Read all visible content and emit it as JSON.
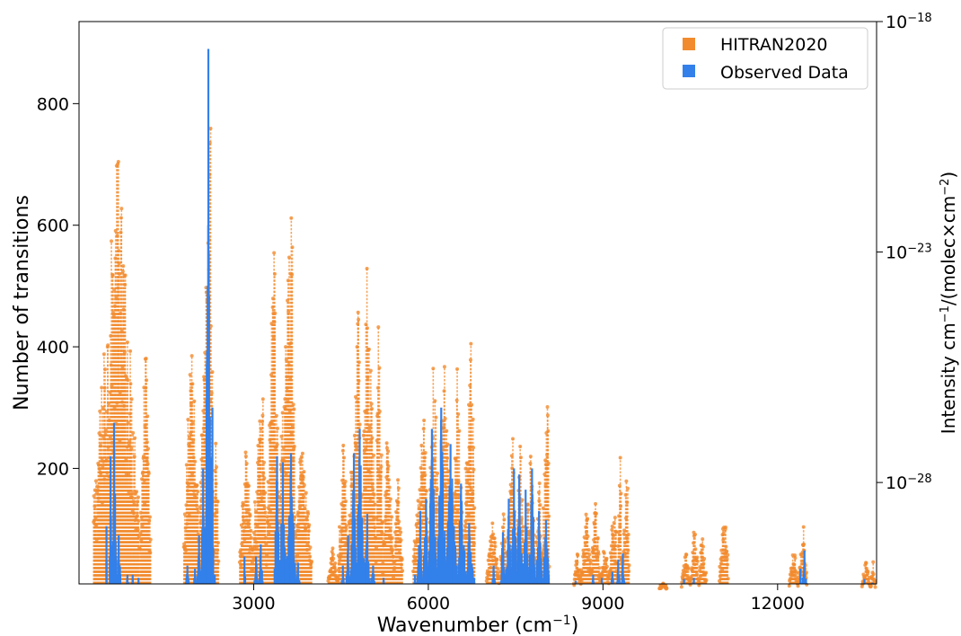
{
  "chart_data": {
    "type": "bar",
    "title": "",
    "xlabel": "Wavenumber (cm",
    "xlabel_sup": "−1",
    "xlabel_end": ")",
    "ylabel_left": "Number of transitions",
    "ylabel_right_parts": [
      "Intensity cm",
      "−1",
      "/(molec×cm",
      "−2",
      ")"
    ],
    "xlim": [
      0,
      13700
    ],
    "ylim_left": [
      10,
      935
    ],
    "ylim_right_log10": [
      -30.2,
      -18
    ],
    "x_ticks": [
      3000,
      6000,
      9000,
      12000
    ],
    "x_tick_labels": [
      "3000",
      "6000",
      "9000",
      "12000"
    ],
    "y_left_ticks": [
      200,
      400,
      600,
      800
    ],
    "y_left_tick_labels": [
      "200",
      "400",
      "600",
      "800"
    ],
    "y_right_ticks_log10": [
      -18,
      -23,
      -28
    ],
    "y_right_tick_base": "10",
    "y_right_tick_exponents": [
      "−18",
      "−23",
      "−28"
    ],
    "grid": false,
    "legend_position": "top-right",
    "legend": [
      {
        "label": "HITRAN2020",
        "color": "#f28b2e"
      },
      {
        "label": "Observed Data",
        "color": "#3380ea"
      }
    ],
    "series": [
      {
        "name": "HITRAN2020",
        "axis": "right",
        "color": "#f28b2e",
        "bands": [
          [
            250,
            1040,
            740,
            670
          ],
          [
            1050,
            1230,
            430,
            1140
          ],
          [
            1800,
            2080,
            440,
            1930
          ],
          [
            2080,
            2300,
            825,
            2270
          ],
          [
            2300,
            2400,
            335,
            2350
          ],
          [
            2760,
            2980,
            260,
            2870
          ],
          [
            2980,
            3230,
            365,
            3150
          ],
          [
            3230,
            3430,
            650,
            3360
          ],
          [
            3430,
            3720,
            695,
            3660
          ],
          [
            3720,
            4000,
            280,
            3800
          ],
          [
            4280,
            4450,
            75,
            4350
          ],
          [
            4450,
            4620,
            270,
            4550
          ],
          [
            4620,
            4850,
            470,
            4800
          ],
          [
            4850,
            5100,
            550,
            4950
          ],
          [
            5100,
            5220,
            520,
            5150
          ],
          [
            5220,
            5400,
            290,
            5300
          ],
          [
            5400,
            5560,
            205,
            5470
          ],
          [
            5740,
            6000,
            295,
            5930
          ],
          [
            6000,
            6200,
            420,
            6100
          ],
          [
            6200,
            6400,
            400,
            6280
          ],
          [
            6400,
            6600,
            380,
            6500
          ],
          [
            6600,
            6800,
            455,
            6740
          ],
          [
            7000,
            7220,
            115,
            7100
          ],
          [
            7220,
            7350,
            150,
            7300
          ],
          [
            7350,
            7500,
            275,
            7450
          ],
          [
            7500,
            7650,
            265,
            7580
          ],
          [
            7650,
            7850,
            235,
            7750
          ],
          [
            7850,
            7950,
            235,
            7900
          ],
          [
            7950,
            8080,
            350,
            8050
          ],
          [
            8500,
            8620,
            65,
            8560
          ],
          [
            8620,
            8800,
            140,
            8720
          ],
          [
            8800,
            8950,
            155,
            8870
          ],
          [
            8950,
            9100,
            85,
            9030
          ],
          [
            9100,
            9250,
            165,
            9200
          ],
          [
            9250,
            9330,
            230,
            9300
          ],
          [
            9330,
            9450,
            225,
            9420
          ],
          [
            9970,
            10100,
            12,
            10040
          ],
          [
            10350,
            10500,
            70,
            10430
          ],
          [
            10500,
            10650,
            110,
            10570
          ],
          [
            10650,
            10780,
            95,
            10700
          ],
          [
            11000,
            11150,
            170,
            11120
          ],
          [
            12200,
            12350,
            72,
            12280
          ],
          [
            12350,
            12500,
            122,
            12450
          ],
          [
            13450,
            13600,
            55,
            13500
          ],
          [
            13600,
            13680,
            50,
            13640
          ]
        ]
      },
      {
        "name": "Observed Data",
        "axis": "left",
        "color": "#3380ea",
        "bands": [
          [
            460,
            480,
            105,
            470
          ],
          [
            520,
            560,
            220,
            540
          ],
          [
            560,
            650,
            275,
            600
          ],
          [
            650,
            720,
            90,
            680
          ],
          [
            800,
            860,
            25,
            830
          ],
          [
            900,
            940,
            25,
            920
          ],
          [
            1000,
            1040,
            20,
            1020
          ],
          [
            1820,
            1900,
            40,
            1860
          ],
          [
            1950,
            2020,
            35,
            1990
          ],
          [
            2020,
            2090,
            90,
            2060
          ],
          [
            2090,
            2160,
            200,
            2130
          ],
          [
            2160,
            2270,
            890,
            2220
          ],
          [
            2270,
            2310,
            300,
            2290
          ],
          [
            2310,
            2350,
            25,
            2330
          ],
          [
            2820,
            2870,
            55,
            2840
          ],
          [
            3000,
            3080,
            55,
            3040
          ],
          [
            3080,
            3160,
            75,
            3120
          ],
          [
            3350,
            3440,
            220,
            3400
          ],
          [
            3440,
            3560,
            210,
            3500
          ],
          [
            3560,
            3720,
            225,
            3640
          ],
          [
            3720,
            3800,
            45,
            3760
          ],
          [
            4500,
            4560,
            40,
            4530
          ],
          [
            4580,
            4660,
            90,
            4620
          ],
          [
            4660,
            4760,
            225,
            4720
          ],
          [
            4760,
            4900,
            265,
            4820
          ],
          [
            4900,
            5000,
            125,
            4950
          ],
          [
            5000,
            5100,
            40,
            5050
          ],
          [
            5200,
            5260,
            20,
            5230
          ],
          [
            5740,
            5800,
            25,
            5770
          ],
          [
            5800,
            5900,
            130,
            5860
          ],
          [
            5900,
            6000,
            150,
            5960
          ],
          [
            6000,
            6150,
            265,
            6060
          ],
          [
            6150,
            6300,
            300,
            6220
          ],
          [
            6300,
            6500,
            240,
            6380
          ],
          [
            6500,
            6650,
            175,
            6560
          ],
          [
            6650,
            6800,
            110,
            6700
          ],
          [
            7080,
            7160,
            40,
            7120
          ],
          [
            7230,
            7320,
            95,
            7280
          ],
          [
            7320,
            7420,
            150,
            7380
          ],
          [
            7420,
            7520,
            200,
            7470
          ],
          [
            7520,
            7620,
            190,
            7560
          ],
          [
            7620,
            7720,
            165,
            7670
          ],
          [
            7720,
            7840,
            200,
            7780
          ],
          [
            7840,
            7960,
            130,
            7900
          ],
          [
            7960,
            8080,
            115,
            8020
          ],
          [
            8500,
            8560,
            15,
            8530
          ],
          [
            8800,
            8870,
            25,
            8830
          ],
          [
            8950,
            9020,
            20,
            8980
          ],
          [
            9120,
            9200,
            30,
            9160
          ],
          [
            9230,
            9300,
            50,
            9260
          ],
          [
            9300,
            9380,
            60,
            9340
          ],
          [
            10360,
            10420,
            18,
            10390
          ],
          [
            10520,
            10600,
            20,
            10560
          ],
          [
            12370,
            12420,
            35,
            12390
          ],
          [
            12420,
            12500,
            65,
            12460
          ],
          [
            13460,
            13520,
            18,
            13490
          ],
          [
            13600,
            13660,
            12,
            13630
          ]
        ]
      }
    ]
  }
}
